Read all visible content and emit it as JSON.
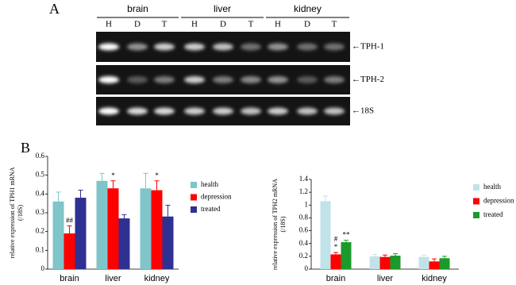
{
  "panels": [
    "A",
    "B"
  ],
  "gel": {
    "groups": [
      {
        "name": "brain",
        "lanes": [
          "H",
          "D",
          "T"
        ]
      },
      {
        "name": "liver",
        "lanes": [
          "H",
          "D",
          "T"
        ]
      },
      {
        "name": "kidney",
        "lanes": [
          "H",
          "D",
          "T"
        ]
      }
    ],
    "rows": [
      "←TPH-1",
      "←TPH-2",
      "←18S"
    ]
  },
  "chart_data": [
    {
      "type": "bar",
      "ylabel": [
        "relative expression of TPH1 mRNA",
        "(/18S)"
      ],
      "categories": [
        "brain",
        "liver",
        "kidney"
      ],
      "series": [
        {
          "name": "health",
          "color": "#7fc5c9",
          "values": [
            0.36,
            0.47,
            0.43
          ],
          "errors": [
            0.05,
            0.04,
            0.08
          ]
        },
        {
          "name": "depression",
          "color": "#ff0000",
          "values": [
            0.19,
            0.43,
            0.42
          ],
          "errors": [
            0.04,
            0.04,
            0.05
          ]
        },
        {
          "name": "treated",
          "color": "#2e3192",
          "values": [
            0.38,
            0.27,
            0.28
          ],
          "errors": [
            0.04,
            0.02,
            0.06
          ]
        }
      ],
      "annotations": [
        {
          "text": "##",
          "category": 0,
          "series": 1
        },
        {
          "text": "*",
          "category": 1,
          "series": 1
        },
        {
          "text": "*",
          "category": 2,
          "series": 1
        }
      ],
      "ylim": [
        0,
        0.6
      ],
      "yticks": [
        0,
        0.1,
        0.2,
        0.3,
        0.4,
        0.5,
        0.6
      ]
    },
    {
      "type": "bar",
      "ylabel": [
        "relative expression of TPH2 mRNA",
        "(/18S)"
      ],
      "categories": [
        "brain",
        "liver",
        "kidney"
      ],
      "series": [
        {
          "name": "health",
          "color": "#c0e3ea",
          "values": [
            1.06,
            0.2,
            0.19
          ],
          "errors": [
            0.08,
            0.03,
            0.03
          ]
        },
        {
          "name": "depression",
          "color": "#ff0000",
          "values": [
            0.23,
            0.19,
            0.12
          ],
          "errors": [
            0.03,
            0.03,
            0.04
          ]
        },
        {
          "name": "treated",
          "color": "#1a9a2a",
          "values": [
            0.42,
            0.21,
            0.17
          ],
          "errors": [
            0.03,
            0.03,
            0.03
          ]
        }
      ],
      "annotations": [
        {
          "text": "*",
          "category": 0,
          "series": 1
        },
        {
          "text": "#",
          "category": 0,
          "series": 1
        },
        {
          "text": "**",
          "category": 0,
          "series": 2
        }
      ],
      "ylim": [
        0,
        1.4
      ],
      "yticks": [
        0,
        0.2,
        0.4,
        0.6,
        0.8,
        1,
        1.2,
        1.4
      ]
    }
  ]
}
